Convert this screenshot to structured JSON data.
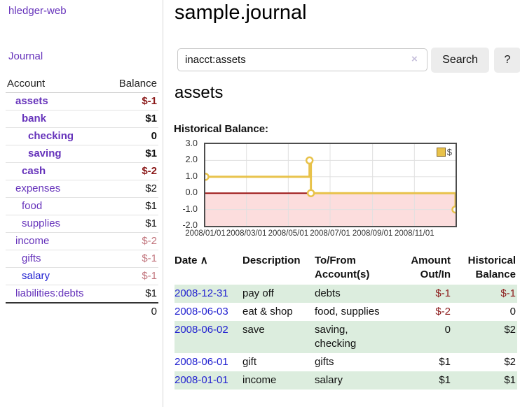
{
  "colors": {
    "accent_purple": "#6633bb",
    "link_blue": "#2323d1",
    "negative_strong": "#8b1a1a",
    "negative_muted": "#c2767e",
    "row_stripe_green": "#dcedde",
    "chart_line_gold": "#e8c24a"
  },
  "sidebar": {
    "brand": "hledger-web",
    "journal_link": "Journal",
    "headers": {
      "account": "Account",
      "balance": "Balance"
    },
    "accounts": [
      {
        "name": "assets",
        "balance": "$-1"
      },
      {
        "name": "bank",
        "balance": "$1"
      },
      {
        "name": "checking",
        "balance": "0"
      },
      {
        "name": "saving",
        "balance": "$1"
      },
      {
        "name": "cash",
        "balance": "$-2"
      },
      {
        "name": "expenses",
        "balance": "$2"
      },
      {
        "name": "food",
        "balance": "$1"
      },
      {
        "name": "supplies",
        "balance": "$1"
      },
      {
        "name": "income",
        "balance": "$-2"
      },
      {
        "name": "gifts",
        "balance": "$-1"
      },
      {
        "name": "salary",
        "balance": "$-1"
      },
      {
        "name": "liabilities:debts",
        "balance": "$1"
      }
    ],
    "total": "0"
  },
  "header": {
    "title": "sample.journal"
  },
  "search": {
    "value": "inacct:assets",
    "clear_icon": "×",
    "button_label": "Search",
    "help_label": "?"
  },
  "account_page": {
    "title": "assets",
    "balance_label": "Historical Balance:"
  },
  "chart_data": {
    "type": "line",
    "step": true,
    "title": "Historical Balance:",
    "xrange": [
      "2008/01/01",
      "2008/12/31"
    ],
    "ylim": [
      -2,
      3
    ],
    "yticks": [
      "3.0",
      "2.0",
      "1.0",
      "0.0",
      "-1.0",
      "-2.0"
    ],
    "xticks": [
      "2008/01/01",
      "2008/03/01",
      "2008/05/01",
      "2008/07/01",
      "2008/09/01",
      "2008/11/01"
    ],
    "series": [
      {
        "name": "$",
        "color": "#e8c24a",
        "points": [
          [
            "2008/01/01",
            1
          ],
          [
            "2008/06/01",
            2
          ],
          [
            "2008/06/03",
            0
          ],
          [
            "2008/12/31",
            -1
          ]
        ]
      }
    ],
    "grid": true,
    "negative_region_color": "#fcdddd",
    "zero_line_color": "#9c1515",
    "legend": {
      "label": "$",
      "position": "top-right"
    }
  },
  "register": {
    "headers": {
      "date": "Date",
      "sort_icon": "∧",
      "description": "Description",
      "accounts": "To/From Account(s)",
      "amount": "Amount Out/In",
      "balance": "Historical Balance"
    },
    "rows": [
      {
        "date": "2008-12-31",
        "description": "pay off",
        "accounts": "debts",
        "amount": "$-1",
        "balance": "$-1"
      },
      {
        "date": "2008-06-03",
        "description": "eat & shop",
        "accounts": "food, supplies",
        "amount": "$-2",
        "balance": "0"
      },
      {
        "date": "2008-06-02",
        "description": "save",
        "accounts": "saving, checking",
        "amount": "0",
        "balance": "$2"
      },
      {
        "date": "2008-06-01",
        "description": "gift",
        "accounts": "gifts",
        "amount": "$1",
        "balance": "$2"
      },
      {
        "date": "2008-01-01",
        "description": "income",
        "accounts": "salary",
        "amount": "$1",
        "balance": "$1"
      }
    ]
  }
}
